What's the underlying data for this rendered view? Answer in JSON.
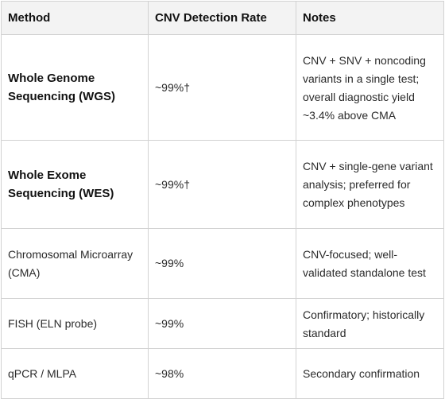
{
  "table": {
    "headers": [
      "Method",
      "CNV Detection Rate",
      "Notes"
    ],
    "rows": [
      {
        "method": "Whole Genome Sequencing (WGS)",
        "rate": "~99%†",
        "notes": "CNV + SNV + noncoding variants in a single test; overall diagnostic yield ~3.4% above CMA"
      },
      {
        "method": "Whole Exome Sequencing (WES)",
        "rate": "~99%†",
        "notes": "CNV + single-gene variant analysis; preferred for complex phenotypes"
      },
      {
        "method": "Chromosomal Microarray (CMA)",
        "rate": "~99%",
        "notes": "CNV-focused; well-validated standalone test"
      },
      {
        "method": "FISH (ELN probe)",
        "rate": "~99%",
        "notes": "Confirmatory; historically standard"
      },
      {
        "method": "qPCR / MLPA",
        "rate": "~98%",
        "notes": "Secondary confirmation"
      }
    ]
  }
}
